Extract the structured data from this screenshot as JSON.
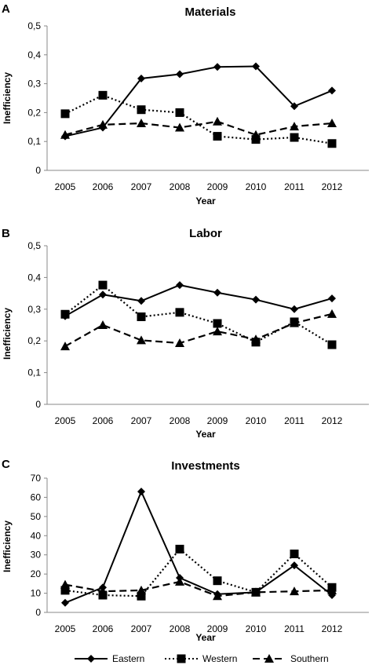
{
  "chart_data": [
    {
      "type": "line",
      "panel": "A",
      "title": "Materials",
      "xlabel": "Year",
      "ylabel": "Inefficiency",
      "categories": [
        "2005",
        "2006",
        "2007",
        "2008",
        "2009",
        "2010",
        "2011",
        "2012"
      ],
      "ylim": [
        0,
        0.5
      ],
      "yticks": [
        0,
        0.1,
        0.2,
        0.3,
        0.4,
        0.5
      ],
      "ytick_labels": [
        "0",
        "0,1",
        "0,2",
        "0,3",
        "0,4",
        "0,5"
      ],
      "grid": false,
      "series": [
        {
          "name": "Eastern",
          "values": [
            0.118,
            0.148,
            0.318,
            0.333,
            0.358,
            0.36,
            0.222,
            0.276
          ]
        },
        {
          "name": "Western",
          "values": [
            0.196,
            0.26,
            0.21,
            0.2,
            0.118,
            0.107,
            0.114,
            0.093
          ]
        },
        {
          "name": "Southern",
          "values": [
            0.123,
            0.158,
            0.163,
            0.148,
            0.169,
            0.123,
            0.152,
            0.163
          ]
        }
      ]
    },
    {
      "type": "line",
      "panel": "B",
      "title": "Labor",
      "xlabel": "Year",
      "ylabel": "Inefficiency",
      "categories": [
        "2005",
        "2006",
        "2007",
        "2008",
        "2009",
        "2010",
        "2011",
        "2012"
      ],
      "ylim": [
        0,
        0.5
      ],
      "yticks": [
        0,
        0.1,
        0.2,
        0.3,
        0.4,
        0.5
      ],
      "ytick_labels": [
        "0",
        "0,1",
        "0,2",
        "0,3",
        "0,4",
        "0,5"
      ],
      "grid": false,
      "series": [
        {
          "name": "Eastern",
          "values": [
            0.278,
            0.346,
            0.326,
            0.376,
            0.352,
            0.33,
            0.3,
            0.334
          ]
        },
        {
          "name": "Western",
          "values": [
            0.284,
            0.376,
            0.276,
            0.29,
            0.255,
            0.196,
            0.26,
            0.188
          ]
        },
        {
          "name": "Southern",
          "values": [
            0.183,
            0.25,
            0.202,
            0.193,
            0.23,
            0.205,
            0.256,
            0.285
          ]
        }
      ]
    },
    {
      "type": "line",
      "panel": "C",
      "title": "Investments",
      "xlabel": "Year",
      "ylabel": "Inefficiency",
      "categories": [
        "2005",
        "2006",
        "2007",
        "2008",
        "2009",
        "2010",
        "2011",
        "2012"
      ],
      "ylim": [
        0,
        70
      ],
      "yticks": [
        0,
        10,
        20,
        30,
        40,
        50,
        60,
        70
      ],
      "ytick_labels": [
        "0",
        "10",
        "20",
        "30",
        "40",
        "50",
        "60",
        "70"
      ],
      "grid": false,
      "series": [
        {
          "name": "Eastern",
          "values": [
            5,
            13,
            63,
            18,
            9.5,
            10.5,
            24.5,
            9
          ]
        },
        {
          "name": "Western",
          "values": [
            11.5,
            9,
            8.5,
            33,
            16.5,
            10.5,
            30.5,
            13
          ]
        },
        {
          "name": "Southern",
          "values": [
            14.5,
            11,
            11.5,
            16,
            8.5,
            10.5,
            11,
            11.5
          ]
        }
      ]
    }
  ],
  "legend": {
    "position": "bottom",
    "items": [
      "Eastern",
      "Western",
      "Southern"
    ]
  },
  "styles": {
    "Eastern": {
      "dash": "solid",
      "marker": "diamond"
    },
    "Western": {
      "dash": "dotted",
      "marker": "square"
    },
    "Southern": {
      "dash": "dashed",
      "marker": "triangle"
    }
  }
}
